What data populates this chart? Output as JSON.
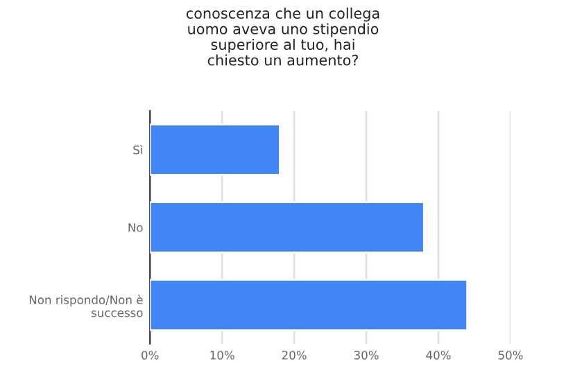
{
  "chart_data": {
    "type": "bar",
    "orientation": "horizontal",
    "title": "conoscenza che un collega\nuomo aveva uno stipendio\nsuperiore al tuo, hai\nchiesto un aumento?",
    "categories": [
      "Sì",
      "No",
      "Non rispondo/Non è\nsuccesso"
    ],
    "values": [
      18,
      38,
      44
    ],
    "color": "#4285f4",
    "xlim": [
      0,
      50
    ],
    "xticks": [
      {
        "value": 0,
        "label": "0%"
      },
      {
        "value": 10,
        "label": "10%"
      },
      {
        "value": 20,
        "label": "20%"
      },
      {
        "value": 30,
        "label": "30%"
      },
      {
        "value": 40,
        "label": "40%"
      },
      {
        "value": 50,
        "label": "50%"
      }
    ],
    "grid": "x"
  }
}
